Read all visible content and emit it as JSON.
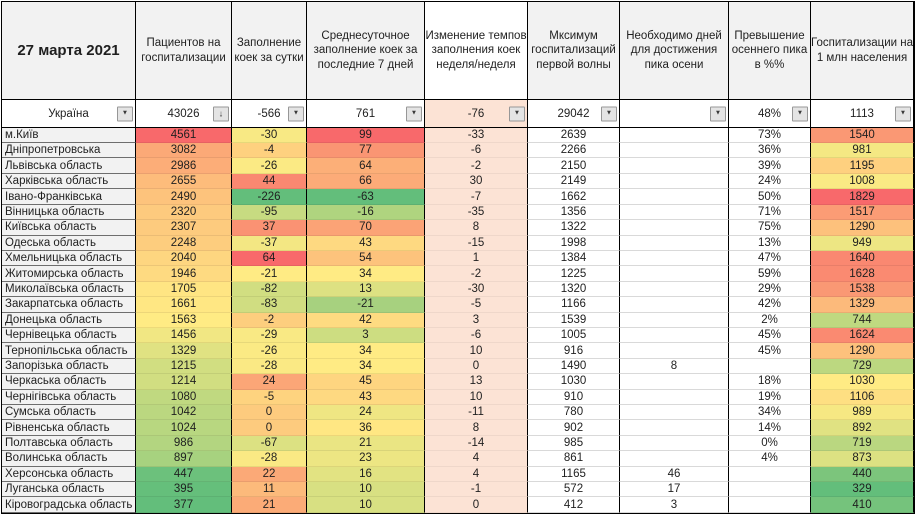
{
  "table": {
    "date_header": "27 марта 2021",
    "columns": [
      "Пациентов на госпитализации",
      "Заполнение коек за сутки",
      "Среднесуточное заполнение коек за последние 7 дней",
      "Изменение темпов заполнения коек неделя/неделя",
      "Мксимум госпитализаций первой волны",
      "Необходимо дней для достижения пика осени",
      "Превышение осеннего пика в %%",
      "Госпитализации на 1 млн населения"
    ],
    "summary": {
      "name": "Україна",
      "patients": "43026",
      "daily": "-566",
      "avg7": "761",
      "change": "-76",
      "max_wave1": "29042",
      "days_to_peak": "",
      "exceed_pct": "48%",
      "per_1m": "1113"
    },
    "rows": [
      {
        "name": "м.Київ",
        "patients": "4561",
        "patients_bg": "#F8696B",
        "daily": "-30",
        "daily_bg": "#F8E984",
        "avg7": "99",
        "avg7_bg": "#F8696B",
        "change": "-33",
        "max_wave1": "2639",
        "days_to_peak": "",
        "exceed_pct": "73%",
        "per_1m": "1540",
        "per_1m_bg": "#FA9874"
      },
      {
        "name": "Дніпропетровська",
        "patients": "3082",
        "patients_bg": "#FBA977",
        "daily": "-4",
        "daily_bg": "#FED17F",
        "avg7": "77",
        "avg7_bg": "#FA9573",
        "change": "-6",
        "max_wave1": "2266",
        "days_to_peak": "",
        "exceed_pct": "36%",
        "per_1m": "981",
        "per_1m_bg": "#F4E883"
      },
      {
        "name": "Львівська область",
        "patients": "2986",
        "patients_bg": "#FCAD78",
        "daily": "-26",
        "daily_bg": "#FBEA84",
        "avg7": "64",
        "avg7_bg": "#FCAF78",
        "change": "-2",
        "max_wave1": "2150",
        "days_to_peak": "",
        "exceed_pct": "39%",
        "per_1m": "1195",
        "per_1m_bg": "#FED07F"
      },
      {
        "name": "Харківська область",
        "patients": "2655",
        "patients_bg": "#FDBC7B",
        "daily": "44",
        "daily_bg": "#FA8871",
        "avg7": "66",
        "avg7_bg": "#FCAB78",
        "change": "30",
        "max_wave1": "2149",
        "days_to_peak": "",
        "exceed_pct": "24%",
        "per_1m": "1008",
        "per_1m_bg": "#FAEA84"
      },
      {
        "name": "Івано-Франківська",
        "patients": "2490",
        "patients_bg": "#FDC37C",
        "daily": "-226",
        "daily_bg": "#63BE7B",
        "avg7": "-63",
        "avg7_bg": "#63BE7B",
        "change": "-7",
        "max_wave1": "1662",
        "days_to_peak": "",
        "exceed_pct": "50%",
        "per_1m": "1829",
        "per_1m_bg": "#F8696B"
      },
      {
        "name": "Вінницька область",
        "patients": "2320",
        "patients_bg": "#FDCA7E",
        "daily": "-95",
        "daily_bg": "#C7DB81",
        "avg7": "-16",
        "avg7_bg": "#AFD47F",
        "change": "-35",
        "max_wave1": "1356",
        "days_to_peak": "",
        "exceed_pct": "71%",
        "per_1m": "1517",
        "per_1m_bg": "#FB9C75"
      },
      {
        "name": "Київська область",
        "patients": "2307",
        "patients_bg": "#FDCB7E",
        "daily": "37",
        "daily_bg": "#FA9273",
        "avg7": "70",
        "avg7_bg": "#FBA376",
        "change": "8",
        "max_wave1": "1322",
        "days_to_peak": "",
        "exceed_pct": "75%",
        "per_1m": "1290",
        "per_1m_bg": "#FDC17C"
      },
      {
        "name": "Одеська область",
        "patients": "2248",
        "patients_bg": "#FDCD7E",
        "daily": "-37",
        "daily_bg": "#F3E783",
        "avg7": "43",
        "avg7_bg": "#FED981",
        "change": "-15",
        "max_wave1": "1998",
        "days_to_peak": "",
        "exceed_pct": "13%",
        "per_1m": "949",
        "per_1m_bg": "#EDE683"
      },
      {
        "name": "Хмельницька область",
        "patients": "2040",
        "patients_bg": "#FED680",
        "daily": "64",
        "daily_bg": "#F8696B",
        "avg7": "54",
        "avg7_bg": "#FDC37C",
        "change": "1",
        "max_wave1": "1384",
        "days_to_peak": "",
        "exceed_pct": "47%",
        "per_1m": "1640",
        "per_1m_bg": "#FA8871"
      },
      {
        "name": "Житомирська область",
        "patients": "1946",
        "patients_bg": "#FEDA81",
        "daily": "-21",
        "daily_bg": "#FFEB84",
        "avg7": "34",
        "avg7_bg": "#FFEB84",
        "change": "-2",
        "max_wave1": "1225",
        "days_to_peak": "",
        "exceed_pct": "59%",
        "per_1m": "1628",
        "per_1m_bg": "#FA8A71"
      },
      {
        "name": "Миколаївська область",
        "patients": "1705",
        "patients_bg": "#FFE583",
        "daily": "-82",
        "daily_bg": "#D1DE81",
        "avg7": "13",
        "avg7_bg": "#DDE182",
        "change": "-30",
        "max_wave1": "1320",
        "days_to_peak": "",
        "exceed_pct": "29%",
        "per_1m": "1538",
        "per_1m_bg": "#FA9874"
      },
      {
        "name": "Закарпатська область",
        "patients": "1661",
        "patients_bg": "#FFE783",
        "daily": "-83",
        "daily_bg": "#D0DD81",
        "avg7": "-21",
        "avg7_bg": "#A7D17F",
        "change": "-5",
        "max_wave1": "1166",
        "days_to_peak": "",
        "exceed_pct": "42%",
        "per_1m": "1329",
        "per_1m_bg": "#FCBA7B"
      },
      {
        "name": "Донецька область",
        "patients": "1563",
        "patients_bg": "#FFEB84",
        "daily": "-2",
        "daily_bg": "#FDCE7E",
        "avg7": "42",
        "avg7_bg": "#FEDB81",
        "change": "3",
        "max_wave1": "1539",
        "days_to_peak": "",
        "exceed_pct": "2%",
        "per_1m": "744",
        "per_1m_bg": "#BFD980"
      },
      {
        "name": "Чернівецька область",
        "patients": "1456",
        "patients_bg": "#F1E783",
        "daily": "-29",
        "daily_bg": "#F9E984",
        "avg7": "3",
        "avg7_bg": "#CDDD81",
        "change": "-6",
        "max_wave1": "1005",
        "days_to_peak": "",
        "exceed_pct": "45%",
        "per_1m": "1624",
        "per_1m_bg": "#FA8A71"
      },
      {
        "name": "Тернопільська область",
        "patients": "1329",
        "patients_bg": "#E0E282",
        "daily": "-26",
        "daily_bg": "#FBEA84",
        "avg7": "34",
        "avg7_bg": "#FFEB84",
        "change": "10",
        "max_wave1": "916",
        "days_to_peak": "",
        "exceed_pct": "45%",
        "per_1m": "1290",
        "per_1m_bg": "#FDC17C"
      },
      {
        "name": "Запорізька область",
        "patients": "1215",
        "patients_bg": "#D1DE81",
        "daily": "-28",
        "daily_bg": "#FAE984",
        "avg7": "34",
        "avg7_bg": "#FFEB84",
        "change": "0",
        "max_wave1": "1490",
        "days_to_peak": "8",
        "exceed_pct": "",
        "per_1m": "729",
        "per_1m_bg": "#BCD880"
      },
      {
        "name": "Черкаська область",
        "patients": "1214",
        "patients_bg": "#D1DE81",
        "daily": "24",
        "daily_bg": "#FBA677",
        "avg7": "45",
        "avg7_bg": "#FED580",
        "change": "13",
        "max_wave1": "1030",
        "days_to_peak": "",
        "exceed_pct": "18%",
        "per_1m": "1030",
        "per_1m_bg": "#FFEB84"
      },
      {
        "name": "Чернігівська область",
        "patients": "1080",
        "patients_bg": "#C0D980",
        "daily": "-5",
        "daily_bg": "#FED37F",
        "avg7": "43",
        "avg7_bg": "#FED981",
        "change": "10",
        "max_wave1": "910",
        "days_to_peak": "",
        "exceed_pct": "19%",
        "per_1m": "1106",
        "per_1m_bg": "#FEDF82"
      },
      {
        "name": "Сумська область",
        "patients": "1042",
        "patients_bg": "#BBD780",
        "daily": "0",
        "daily_bg": "#FDCB7E",
        "avg7": "24",
        "avg7_bg": "#EFE683",
        "change": "-11",
        "max_wave1": "780",
        "days_to_peak": "",
        "exceed_pct": "34%",
        "per_1m": "989",
        "per_1m_bg": "#F6E883"
      },
      {
        "name": "Рівненська область",
        "patients": "1024",
        "patients_bg": "#B8D780",
        "daily": "0",
        "daily_bg": "#FDCB7E",
        "avg7": "36",
        "avg7_bg": "#FFE783",
        "change": "8",
        "max_wave1": "902",
        "days_to_peak": "",
        "exceed_pct": "14%",
        "per_1m": "892",
        "per_1m_bg": "#E0E282"
      },
      {
        "name": "Полтавська область",
        "patients": "986",
        "patients_bg": "#B3D580",
        "daily": "-67",
        "daily_bg": "#DCE182",
        "avg7": "21",
        "avg7_bg": "#EAE583",
        "change": "-14",
        "max_wave1": "985",
        "days_to_peak": "",
        "exceed_pct": "0%",
        "per_1m": "719",
        "per_1m_bg": "#BAD780"
      },
      {
        "name": "Волинська область",
        "patients": "897",
        "patients_bg": "#A7D27F",
        "daily": "-28",
        "daily_bg": "#FAE984",
        "avg7": "23",
        "avg7_bg": "#EDE683",
        "change": "4",
        "max_wave1": "861",
        "days_to_peak": "",
        "exceed_pct": "4%",
        "per_1m": "873",
        "per_1m_bg": "#DCE182"
      },
      {
        "name": "Херсонська область",
        "patients": "447",
        "patients_bg": "#6CC17C",
        "daily": "22",
        "daily_bg": "#FBA977",
        "avg7": "16",
        "avg7_bg": "#E2E382",
        "change": "4",
        "max_wave1": "1165",
        "days_to_peak": "46",
        "exceed_pct": "",
        "per_1m": "440",
        "per_1m_bg": "#7CC57C"
      },
      {
        "name": "Луганська область",
        "patients": "395",
        "patients_bg": "#65BF7B",
        "daily": "11",
        "daily_bg": "#FCBA7B",
        "avg7": "10",
        "avg7_bg": "#D8E082",
        "change": "-1",
        "max_wave1": "572",
        "days_to_peak": "17",
        "exceed_pct": "",
        "per_1m": "329",
        "per_1m_bg": "#63BE7B"
      },
      {
        "name": "Кіровоградська область",
        "patients": "377",
        "patients_bg": "#63BE7B",
        "daily": "21",
        "daily_bg": "#FBAB77",
        "avg7": "10",
        "avg7_bg": "#D8E082",
        "change": "0",
        "max_wave1": "412",
        "days_to_peak": "3",
        "exceed_pct": "",
        "per_1m": "410",
        "per_1m_bg": "#75C37C"
      }
    ]
  },
  "icons": {
    "filter_dropdown": "▼",
    "filter_sort_desc": "↓"
  },
  "colors": {
    "change_col_bg": "#FCE3D5",
    "header_bg": "#F2F2F2",
    "name_col_bg": "#F2F2F2",
    "scale_red": "#F8696B",
    "scale_yellow": "#FFEB84",
    "scale_green": "#63BE7B",
    "grid_line": "#000000"
  }
}
